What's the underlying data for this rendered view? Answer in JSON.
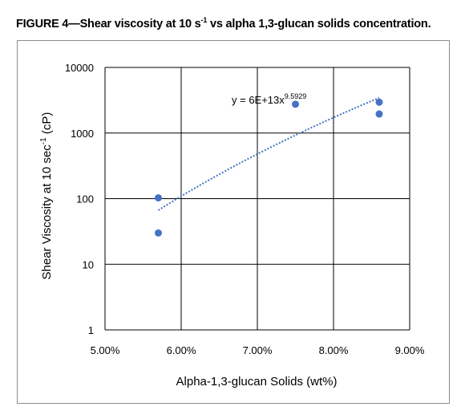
{
  "figure": {
    "title_prefix": "FIGURE 4—Shear viscosity at 10 s",
    "title_sup": "-1",
    "title_suffix": " vs alpha 1,3-glucan solids concentration."
  },
  "chart_data": {
    "type": "scatter",
    "xlabel": "Alpha-1,3-glucan Solids (wt%)",
    "ylabel_prefix": "Shear Viscosity at 10 sec",
    "ylabel_sup": "-1",
    "ylabel_suffix": " (cP)",
    "xlim": [
      5.0,
      9.0
    ],
    "ylim": [
      1,
      10000
    ],
    "y_scale": "log",
    "grid": true,
    "x_ticks": [
      5,
      6,
      7,
      8,
      9
    ],
    "x_tick_labels": [
      "5.00%",
      "6.00%",
      "7.00%",
      "8.00%",
      "9.00%"
    ],
    "y_ticks": [
      1,
      10,
      100,
      1000,
      10000
    ],
    "y_tick_labels": [
      "1",
      "10",
      "100",
      "1000",
      "10000"
    ],
    "points": [
      {
        "x": 5.7,
        "y": 103
      },
      {
        "x": 5.7,
        "y": 30
      },
      {
        "x": 7.5,
        "y": 2750
      },
      {
        "x": 8.6,
        "y": 2950
      },
      {
        "x": 8.6,
        "y": 1950
      }
    ],
    "marker_color": "#4472c4",
    "trendline": {
      "type": "power",
      "x_range": [
        5.7,
        8.6
      ],
      "color": "#4472c4",
      "style": "dotted",
      "equation_main": "y = 6E+13x",
      "equation_exp": "9.5929"
    }
  }
}
